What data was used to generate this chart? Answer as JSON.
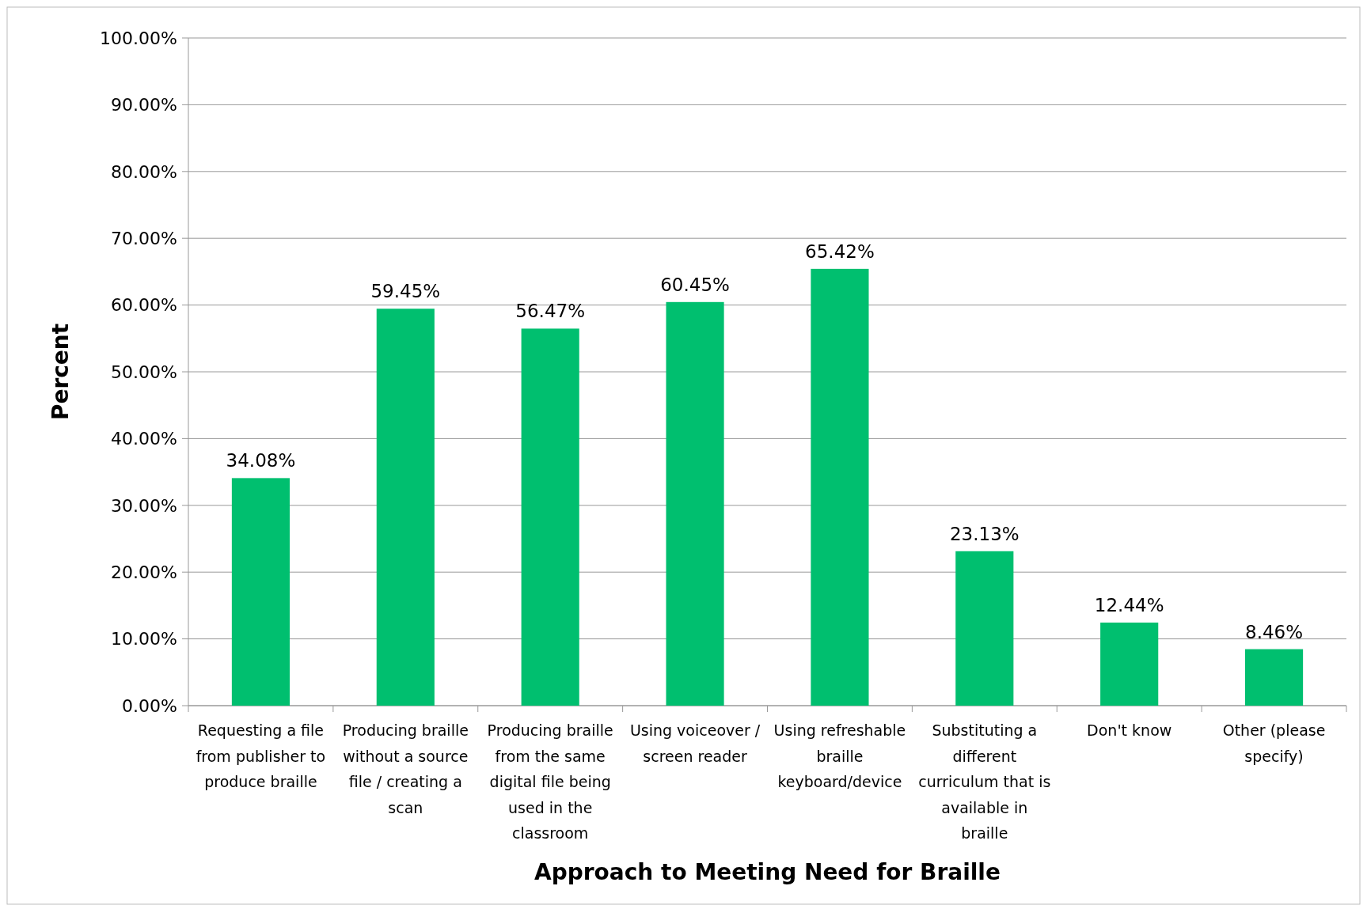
{
  "chart_data": {
    "type": "bar",
    "xlabel": "Approach to Meeting Need for Braille",
    "ylabel": "Percent",
    "categories": [
      "Requesting a file from publisher to produce braille",
      "Producing braille without a source file / creating a scan",
      "Producing braille from the same digital file being used in the classroom",
      "Using voiceover / screen reader",
      "Using refreshable braille keyboard/device",
      "Substituting a different curriculum that is available in braille",
      "Don't know",
      "Other (please specify)"
    ],
    "values": [
      34.08,
      59.45,
      56.47,
      60.45,
      65.42,
      23.13,
      12.44,
      8.46
    ],
    "value_labels": [
      "34.08%",
      "59.45%",
      "56.47%",
      "60.45%",
      "65.42%",
      "23.13%",
      "12.44%",
      "8.46%"
    ],
    "color": "#00bf6f",
    "ylim": [
      0,
      100
    ],
    "yticks": [
      {
        "value": 0,
        "label": "0.00%"
      },
      {
        "value": 10,
        "label": "10.00%"
      },
      {
        "value": 20,
        "label": "20.00%"
      },
      {
        "value": 30,
        "label": "30.00%"
      },
      {
        "value": 40,
        "label": "40.00%"
      },
      {
        "value": 50,
        "label": "50.00%"
      },
      {
        "value": 60,
        "label": "60.00%"
      },
      {
        "value": 70,
        "label": "70.00%"
      },
      {
        "value": 80,
        "label": "80.00%"
      },
      {
        "value": 90,
        "label": "90.00%"
      },
      {
        "value": 100,
        "label": "100.00%"
      }
    ],
    "grid": "y"
  }
}
